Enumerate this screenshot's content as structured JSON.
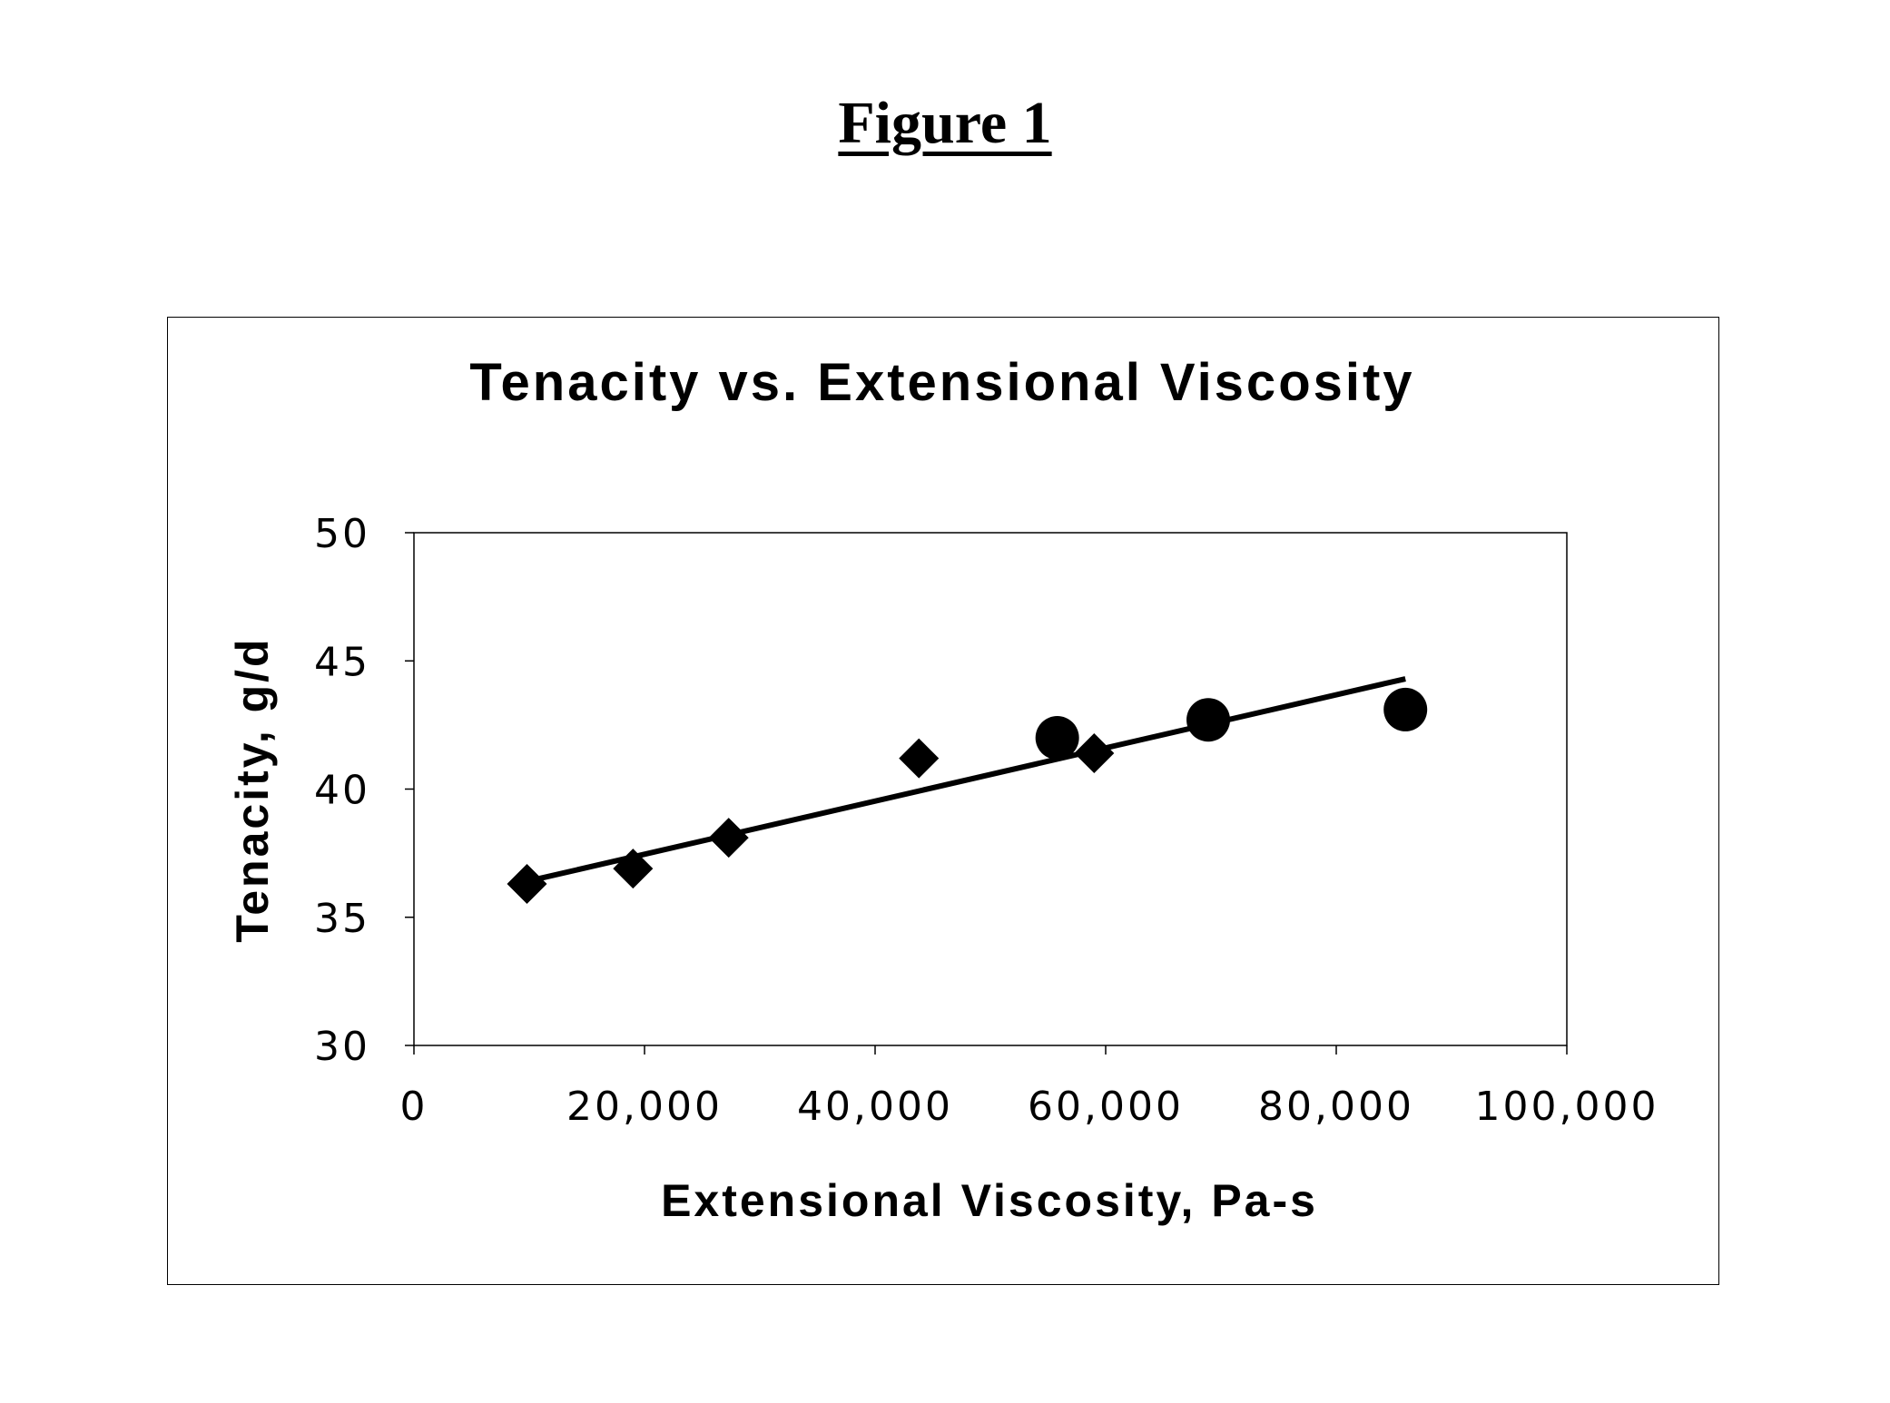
{
  "figure_label": "Figure 1",
  "chart_data": {
    "type": "scatter",
    "title": "Tenacity vs. Extensional Viscosity",
    "xlabel": "Extensional Viscosity, Pa-s",
    "ylabel": "Tenacity, g/d",
    "xlim": [
      0,
      100000
    ],
    "ylim": [
      30,
      50
    ],
    "xticks": [
      0,
      20000,
      40000,
      60000,
      80000,
      100000
    ],
    "xtick_labels": [
      "0",
      "20,000",
      "40,000",
      "60,000",
      "80,000",
      "100,000"
    ],
    "yticks": [
      30,
      35,
      40,
      45,
      50
    ],
    "ytick_labels": [
      "30",
      "35",
      "40",
      "45",
      "50"
    ],
    "grid": false,
    "legend": "none",
    "series": [
      {
        "marker": "diamond",
        "color": "#000000",
        "points": [
          {
            "x": 9800,
            "y": 36.3
          },
          {
            "x": 19000,
            "y": 36.9
          },
          {
            "x": 27300,
            "y": 38.1
          },
          {
            "x": 43800,
            "y": 41.2
          },
          {
            "x": 59000,
            "y": 41.4
          }
        ]
      },
      {
        "marker": "circle",
        "color": "#000000",
        "points": [
          {
            "x": 55800,
            "y": 42.0
          },
          {
            "x": 68900,
            "y": 42.7
          },
          {
            "x": 86000,
            "y": 43.1
          }
        ]
      }
    ],
    "trendline": {
      "type": "linear",
      "x": [
        9800,
        86000
      ],
      "y": [
        36.4,
        44.3
      ],
      "color": "#000000"
    }
  }
}
